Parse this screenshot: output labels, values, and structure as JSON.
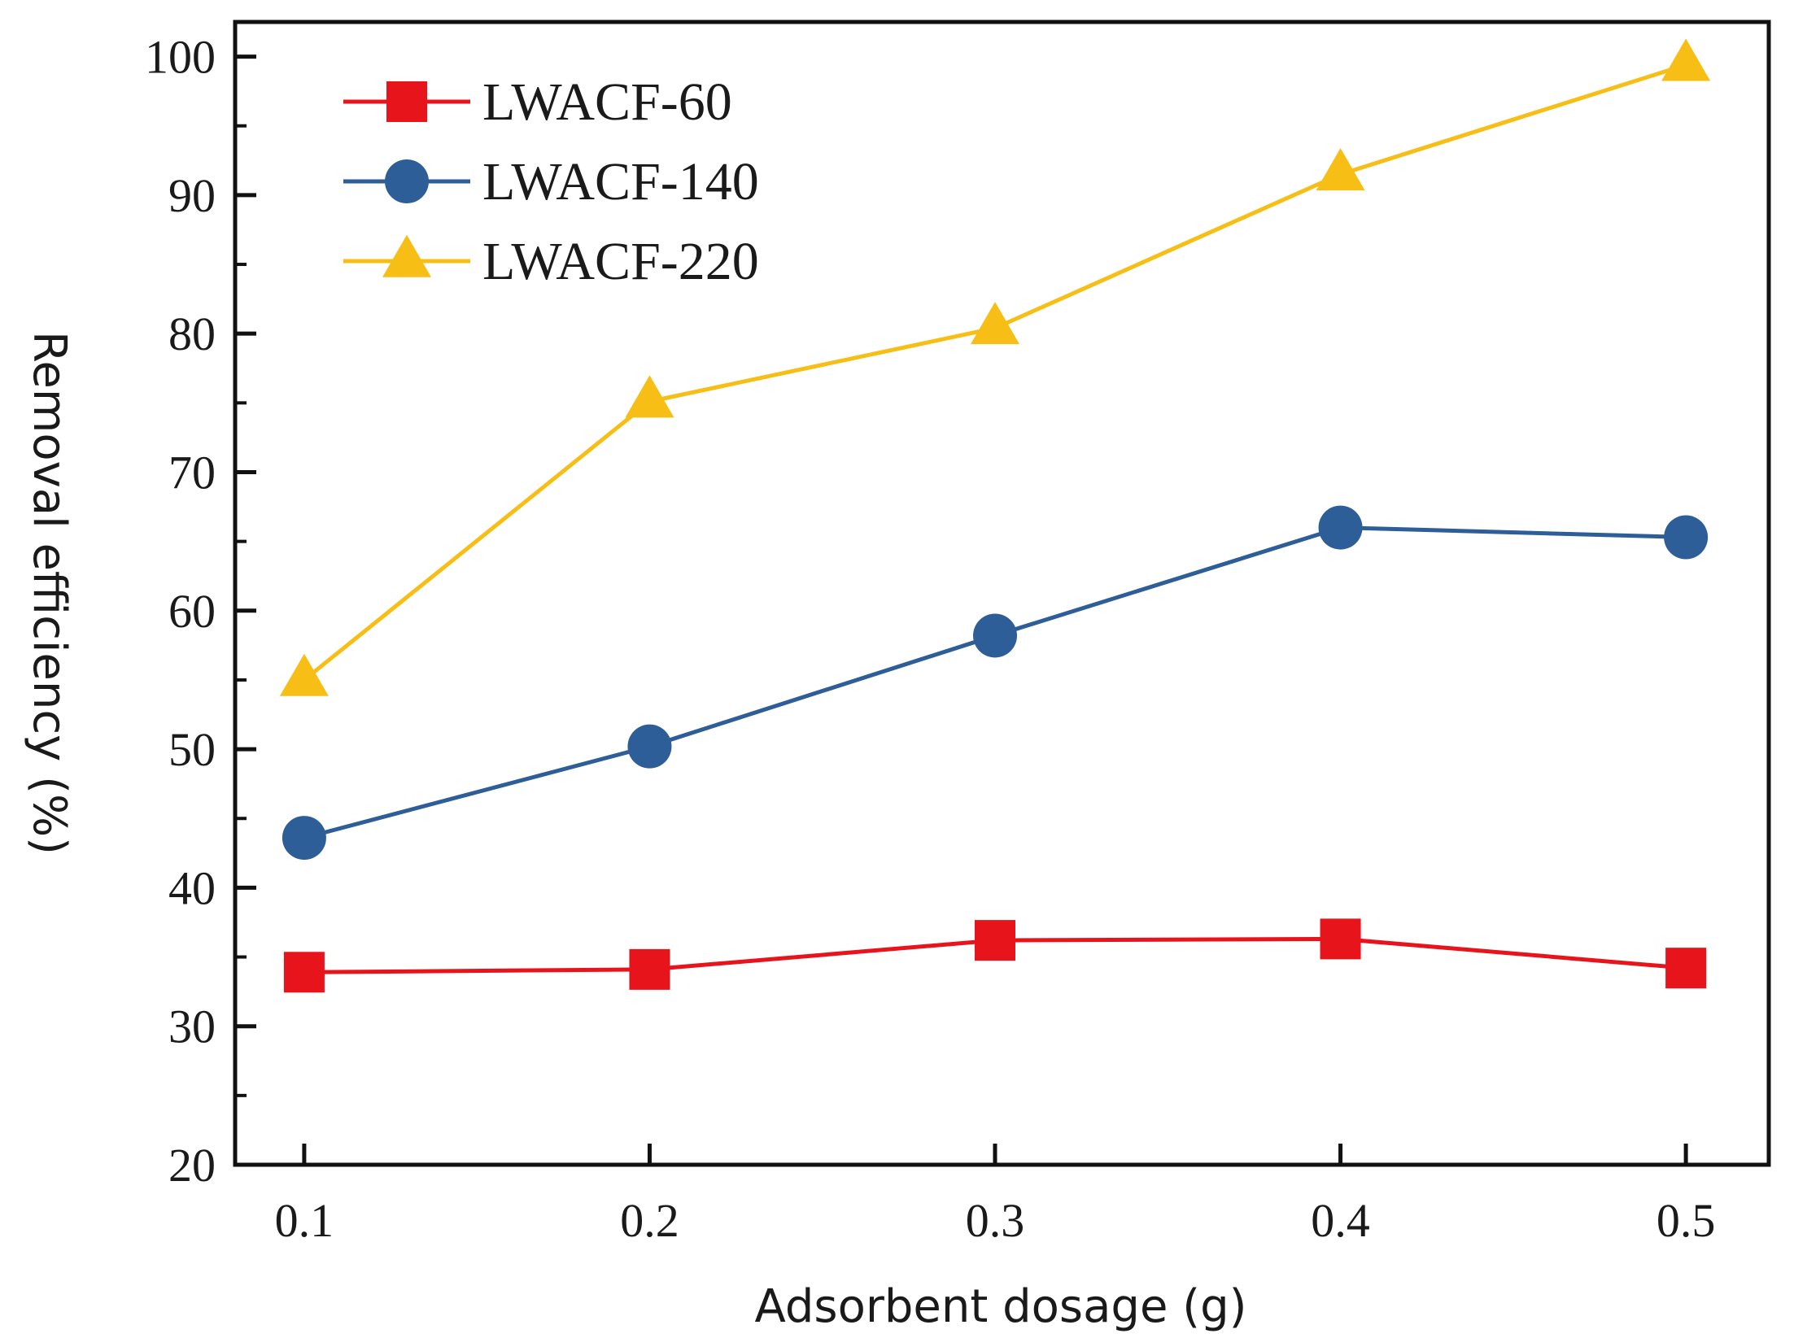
{
  "chart_data": {
    "type": "line",
    "title": "",
    "xlabel": "Adsorbent dosage (g)",
    "ylabel": "Removal efficiency (%)",
    "x": [
      0.1,
      0.2,
      0.3,
      0.4,
      0.5
    ],
    "x_tick_labels": [
      "0.1",
      "0.2",
      "0.3",
      "0.4",
      "0.5"
    ],
    "xlim": [
      0.08,
      0.524
    ],
    "ylim": [
      20,
      102.5
    ],
    "y_ticks": [
      20,
      30,
      40,
      50,
      60,
      70,
      80,
      90,
      100
    ],
    "y_tick_labels": [
      "20",
      "30",
      "40",
      "50",
      "60",
      "70",
      "80",
      "90",
      "100"
    ],
    "grid": false,
    "legend_position": "top-left",
    "series": [
      {
        "name": "LWACF-60",
        "color": "#e8141c",
        "marker": "square",
        "values": [
          33.9,
          34.1,
          36.2,
          36.3,
          34.2
        ]
      },
      {
        "name": "LWACF-140",
        "color": "#2e5e97",
        "marker": "circle",
        "values": [
          43.6,
          50.2,
          58.2,
          66.0,
          65.3
        ]
      },
      {
        "name": "LWACF-220",
        "color": "#f7be16",
        "marker": "triangle",
        "values": [
          55.0,
          75.1,
          80.4,
          91.5,
          99.4
        ]
      }
    ]
  }
}
